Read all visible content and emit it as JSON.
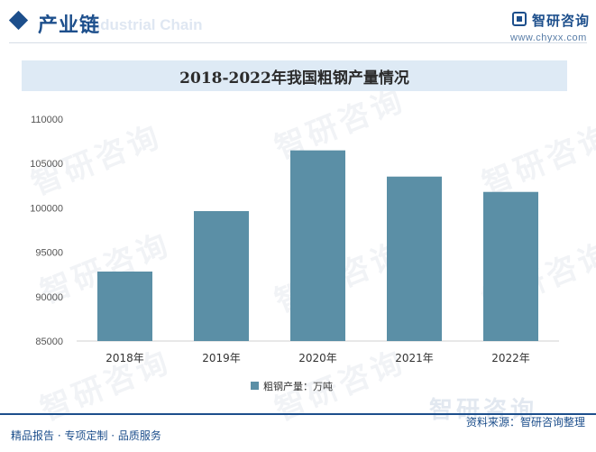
{
  "header": {
    "section_title": "产业链",
    "section_subtitle": "Industrial Chain",
    "brand_name": "智研咨询",
    "brand_url": "www.chyxx.com"
  },
  "watermark_text": "智研咨询",
  "chart_data": {
    "type": "bar",
    "title": "2018-2022年我国粗钢产量情况",
    "categories": [
      "2018年",
      "2019年",
      "2020年",
      "2021年",
      "2022年"
    ],
    "series": [
      {
        "name": "粗钢产量：万吨",
        "values": [
          92826,
          99634,
          106477,
          103524,
          101796
        ]
      }
    ],
    "ylim": [
      85000,
      110000
    ],
    "yticks": [
      85000,
      90000,
      95000,
      100000,
      105000,
      110000
    ],
    "xlabel": "",
    "ylabel": "",
    "grid": false,
    "legend_position": "bottom",
    "colors": {
      "bar": "#5b8fa6"
    }
  },
  "footer": {
    "left_text": "精品报告 · 专项定制 · 品质服务",
    "source_text": "资料来源：智研咨询整理"
  }
}
